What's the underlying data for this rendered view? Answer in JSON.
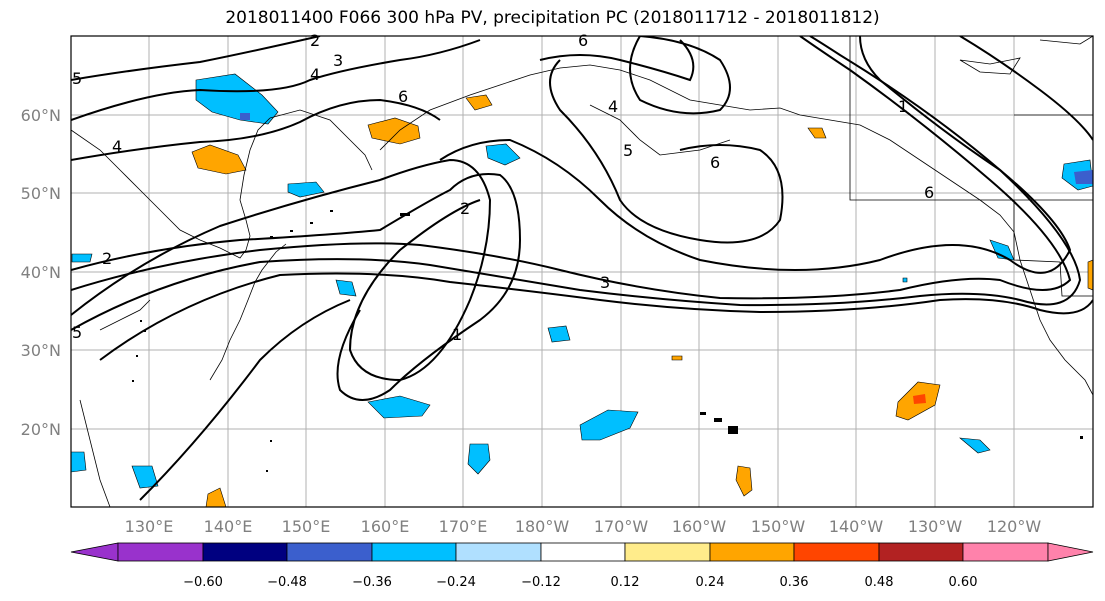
{
  "title": "2018011400 F066 300 hPa PV, precipitation PC (2018011712 - 2018011812)",
  "map": {
    "lat_labels": [
      "60°N",
      "50°N",
      "40°N",
      "30°N",
      "20°N"
    ],
    "lon_labels": [
      "130°E",
      "140°E",
      "150°E",
      "160°E",
      "170°E",
      "180°W",
      "170°W",
      "160°W",
      "150°W",
      "140°W",
      "130°W",
      "120°W"
    ],
    "contour_labels": [
      "2",
      "3",
      "4",
      "5",
      "6",
      "6",
      "4",
      "5",
      "6",
      "1",
      "6",
      "2",
      "3",
      "1",
      "4",
      "2",
      "5"
    ]
  },
  "colorbar": {
    "tick_labels": [
      "−0.60",
      "−0.48",
      "−0.36",
      "−0.24",
      "−0.12",
      "0.12",
      "0.24",
      "0.36",
      "0.48",
      "0.60"
    ],
    "colors": [
      "#9932cc",
      "#000080",
      "#3b5fcd",
      "#00bfff",
      "#b0e0ff",
      "#ffffff",
      "#ffec8b",
      "#ffa500",
      "#ff4500",
      "#b22222",
      "#ff82ab"
    ]
  }
}
